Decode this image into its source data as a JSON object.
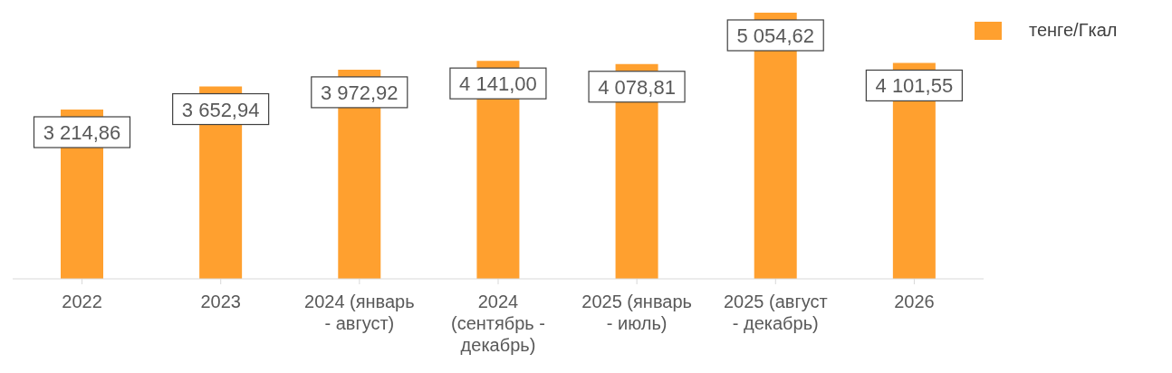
{
  "chart_data": {
    "type": "bar",
    "categories": [
      "2022",
      "2023",
      "2024 (январь - август)",
      "2024 (сентябрь - декабрь)",
      "2025 (январь - июль)",
      "2025 (август - декабрь)",
      "2026"
    ],
    "series": [
      {
        "name": "тенге/Гкал",
        "color": "#ffa02f",
        "values": [
          3214.86,
          3652.94,
          3972.92,
          4141.0,
          4078.81,
          5054.62,
          4101.55
        ],
        "value_labels": [
          "3 214,86",
          "3 652,94",
          "3 972,92",
          "4 141,00",
          "4 078,81",
          "5 054,62",
          "4 101,55"
        ]
      }
    ],
    "legend": "top right",
    "grid": false
  }
}
